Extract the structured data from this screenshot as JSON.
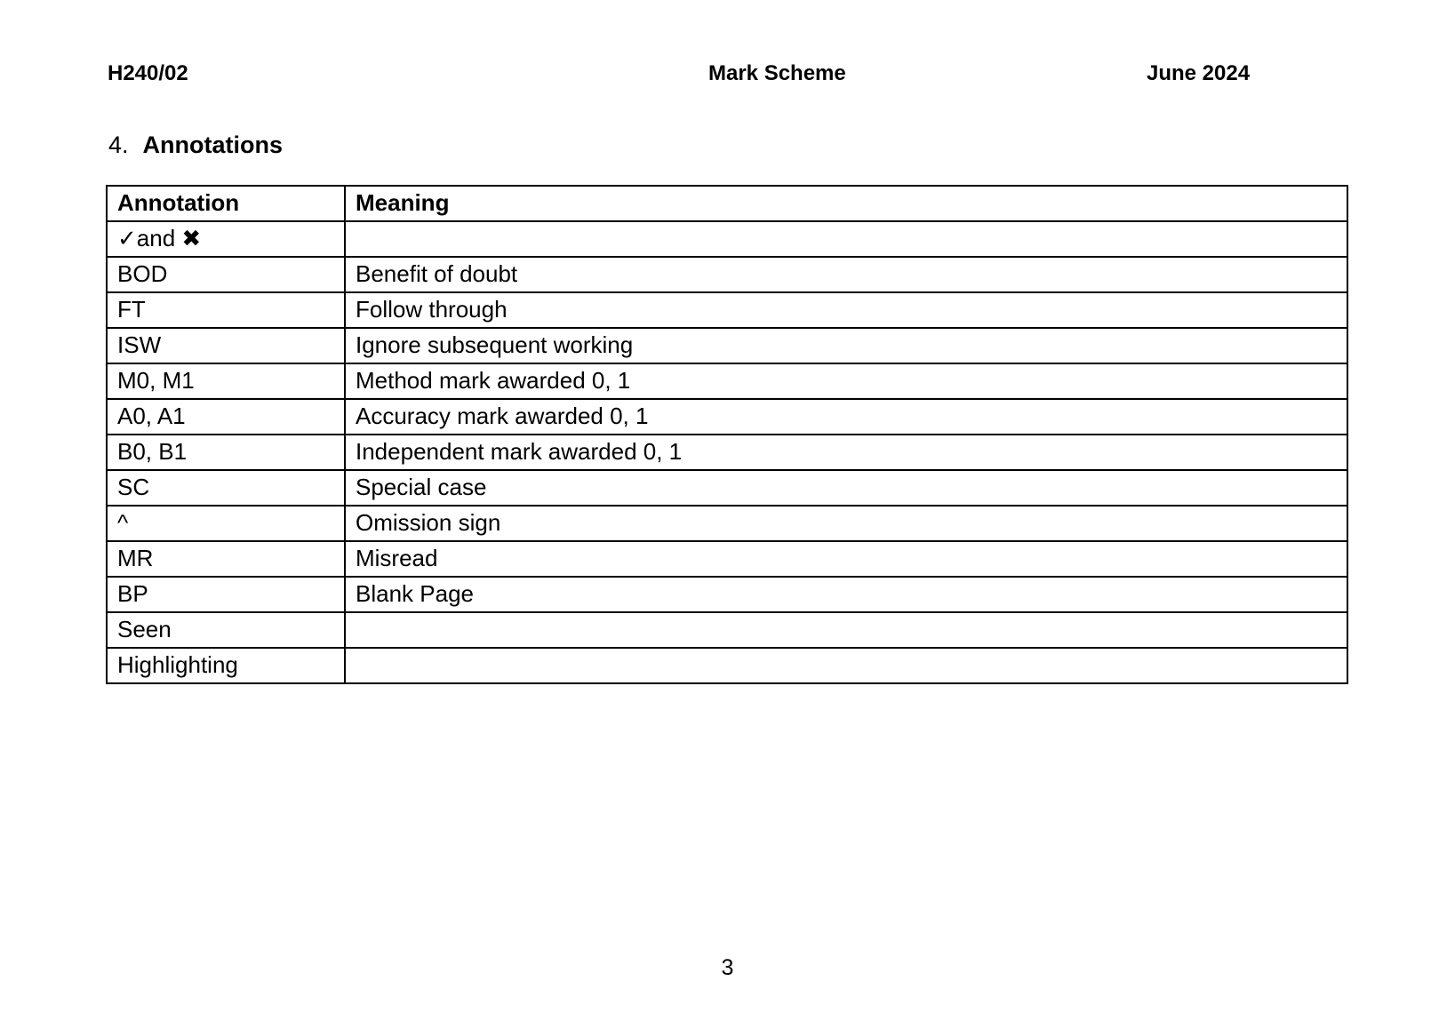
{
  "header": {
    "paper_code": "H240/02",
    "title": "Mark Scheme",
    "date": "June 2024"
  },
  "section": {
    "number": "4.",
    "title": "Annotations"
  },
  "annotations_table": {
    "columns": {
      "annotation": "Annotation",
      "meaning": "Meaning"
    },
    "rows": [
      {
        "annotation": "✓and ✖",
        "meaning": ""
      },
      {
        "annotation": "BOD",
        "meaning": "Benefit of doubt"
      },
      {
        "annotation": "FT",
        "meaning": "Follow through"
      },
      {
        "annotation": "ISW",
        "meaning": "Ignore subsequent working"
      },
      {
        "annotation": "M0, M1",
        "meaning": "Method mark awarded 0, 1"
      },
      {
        "annotation": "A0, A1",
        "meaning": "Accuracy mark awarded 0, 1"
      },
      {
        "annotation": "B0, B1",
        "meaning": "Independent mark awarded 0, 1"
      },
      {
        "annotation": "SC",
        "meaning": "Special case"
      },
      {
        "annotation": "^",
        "meaning": "Omission sign"
      },
      {
        "annotation": "MR",
        "meaning": "Misread"
      },
      {
        "annotation": "BP",
        "meaning": "Blank Page"
      },
      {
        "annotation": "Seen",
        "meaning": ""
      },
      {
        "annotation": "Highlighting",
        "meaning": ""
      }
    ]
  },
  "footer": {
    "page_number": "3"
  }
}
